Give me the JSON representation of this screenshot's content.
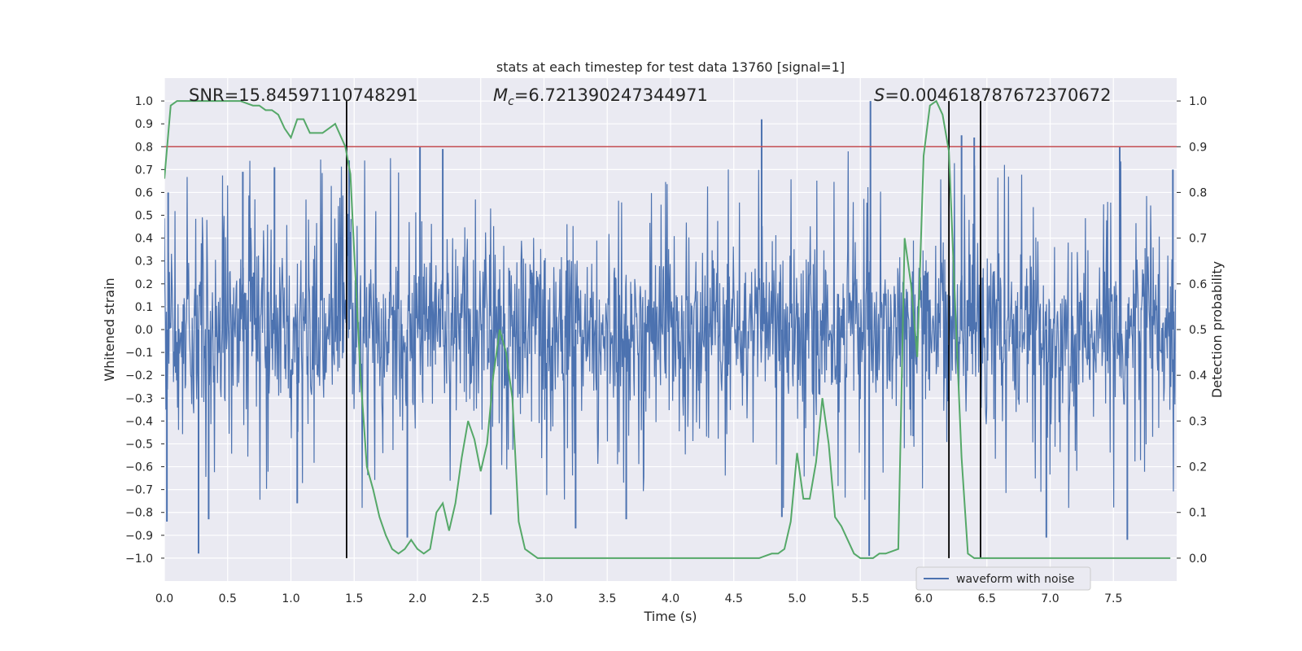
{
  "chart_data": {
    "type": "line",
    "title": "stats at each timestep for test data 13760 [signal=1]",
    "xlabel": "Time (s)",
    "ylabel": "Whitened strain",
    "y2label": "Detection probability",
    "xlim": [
      0,
      8.0
    ],
    "ylim": [
      -1.1,
      1.1
    ],
    "y2lim": [
      -0.05,
      1.05
    ],
    "xticks": [
      0.0,
      0.5,
      1.0,
      1.5,
      2.0,
      2.5,
      3.0,
      3.5,
      4.0,
      4.5,
      5.0,
      5.5,
      6.0,
      6.5,
      7.0,
      7.5
    ],
    "yticks": [
      -1.0,
      -0.9,
      -0.8,
      -0.7,
      -0.6,
      -0.5,
      -0.4,
      -0.3,
      -0.2,
      -0.1,
      0.0,
      0.1,
      0.2,
      0.3,
      0.4,
      0.5,
      0.6,
      0.7,
      0.8,
      0.9,
      1.0
    ],
    "y2ticks": [
      0.0,
      0.1,
      0.2,
      0.3,
      0.4,
      0.5,
      0.6,
      0.7,
      0.8,
      0.9,
      1.0
    ],
    "grid": true,
    "annotations": {
      "snr": "SNR=15.84597110748291",
      "mc_symbol": "M",
      "mc_sub": "c",
      "mc_value": "=6.721390247344971",
      "s_symbol": "S",
      "s_value": "=0.004618787672370672"
    },
    "legend": {
      "position": "lower-right",
      "entries": [
        "waveform with noise"
      ]
    },
    "threshold": {
      "axis": "y2",
      "value": 0.9,
      "color": "#c44e52"
    },
    "vertical_lines": [
      1.44,
      6.2,
      6.45
    ],
    "waveform": {
      "name": "waveform with noise",
      "color": "#4c72b0",
      "seed": 13760,
      "spikes": [
        {
          "t": 0.02,
          "v": -0.84
        },
        {
          "t": 0.03,
          "v": 0.6
        },
        {
          "t": 0.27,
          "v": -0.98
        },
        {
          "t": 0.35,
          "v": -0.83
        },
        {
          "t": 0.62,
          "v": 0.69
        },
        {
          "t": 0.87,
          "v": 0.71
        },
        {
          "t": 1.05,
          "v": -0.76
        },
        {
          "t": 1.46,
          "v": 0.74
        },
        {
          "t": 1.92,
          "v": -0.91
        },
        {
          "t": 2.02,
          "v": 0.8
        },
        {
          "t": 2.2,
          "v": 0.79
        },
        {
          "t": 2.58,
          "v": -0.81
        },
        {
          "t": 3.25,
          "v": -0.87
        },
        {
          "t": 3.65,
          "v": -0.83
        },
        {
          "t": 4.72,
          "v": 0.92
        },
        {
          "t": 4.88,
          "v": -0.82
        },
        {
          "t": 5.58,
          "v": 1.0
        },
        {
          "t": 5.57,
          "v": -0.99
        },
        {
          "t": 6.3,
          "v": 0.85
        },
        {
          "t": 6.4,
          "v": 0.84
        },
        {
          "t": 6.97,
          "v": -0.91
        },
        {
          "t": 7.55,
          "v": 0.8
        },
        {
          "t": 7.61,
          "v": -0.92
        },
        {
          "t": 7.97,
          "v": 0.7
        }
      ]
    },
    "detection_probability": {
      "name": "detection probability",
      "color": "#55a868",
      "x": [
        0.0,
        0.05,
        0.1,
        0.2,
        0.3,
        0.5,
        0.6,
        0.7,
        0.75,
        0.8,
        0.85,
        0.9,
        0.95,
        1.0,
        1.05,
        1.1,
        1.15,
        1.25,
        1.3,
        1.35,
        1.43,
        1.47,
        1.5,
        1.55,
        1.6,
        1.65,
        1.7,
        1.75,
        1.8,
        1.85,
        1.9,
        1.95,
        2.0,
        2.05,
        2.1,
        2.15,
        2.2,
        2.25,
        2.3,
        2.35,
        2.4,
        2.45,
        2.5,
        2.55,
        2.6,
        2.65,
        2.7,
        2.75,
        2.8,
        2.85,
        2.9,
        2.95,
        3.0,
        3.05,
        3.1,
        3.3,
        3.5,
        3.7,
        4.0,
        4.5,
        4.7,
        4.8,
        4.85,
        4.9,
        4.95,
        5.0,
        5.05,
        5.1,
        5.15,
        5.2,
        5.25,
        5.3,
        5.35,
        5.4,
        5.45,
        5.5,
        5.55,
        5.6,
        5.65,
        5.7,
        5.8,
        5.85,
        5.9,
        5.95,
        6.0,
        6.05,
        6.1,
        6.15,
        6.2,
        6.25,
        6.3,
        6.35,
        6.4,
        6.45,
        6.5,
        6.55,
        6.6,
        6.65,
        6.7,
        6.75,
        6.8,
        7.0,
        7.2,
        7.4,
        7.6,
        7.7,
        7.8,
        7.95
      ],
      "y": [
        0.83,
        0.99,
        1.0,
        1.0,
        1.0,
        1.0,
        1.0,
        0.99,
        0.99,
        0.98,
        0.98,
        0.97,
        0.94,
        0.92,
        0.96,
        0.96,
        0.93,
        0.93,
        0.94,
        0.95,
        0.9,
        0.84,
        0.67,
        0.4,
        0.2,
        0.15,
        0.09,
        0.05,
        0.02,
        0.01,
        0.02,
        0.04,
        0.02,
        0.01,
        0.02,
        0.1,
        0.12,
        0.06,
        0.12,
        0.22,
        0.3,
        0.26,
        0.19,
        0.25,
        0.4,
        0.5,
        0.45,
        0.35,
        0.08,
        0.02,
        0.01,
        0.0,
        0.0,
        0.0,
        0.0,
        0.0,
        0.0,
        0.0,
        0.0,
        0.0,
        0.0,
        0.01,
        0.01,
        0.02,
        0.08,
        0.23,
        0.13,
        0.13,
        0.21,
        0.35,
        0.25,
        0.09,
        0.07,
        0.04,
        0.01,
        0.0,
        0.0,
        0.0,
        0.01,
        0.01,
        0.02,
        0.7,
        0.6,
        0.44,
        0.88,
        0.99,
        1.0,
        0.97,
        0.89,
        0.55,
        0.22,
        0.01,
        0.0,
        0.0,
        0.0,
        0.0,
        0.0,
        0.0,
        0.0,
        0.0,
        0.0,
        0.0,
        0.0,
        0.0,
        0.0,
        0.0,
        0.0,
        0.0
      ]
    }
  }
}
